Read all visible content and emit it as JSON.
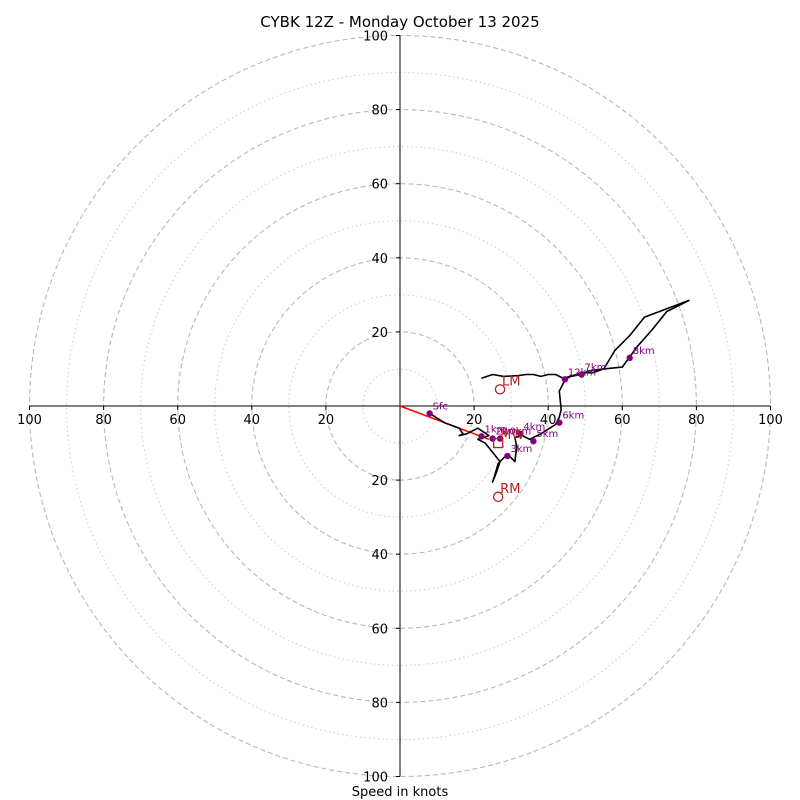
{
  "chart_data": {
    "type": "hodograph",
    "title": "CYBK 12Z - Monday October 13 2025",
    "xlabel": "Speed in knots",
    "xlim": [
      -100,
      100
    ],
    "ylim": [
      -100,
      100
    ],
    "x_ticks": [
      "100",
      "80",
      "60",
      "40",
      "20",
      "20",
      "40",
      "60",
      "80",
      "100"
    ],
    "x_tick_values": [
      -100,
      -80,
      -60,
      -40,
      -20,
      20,
      40,
      60,
      80,
      100
    ],
    "y_ticks": [
      "100",
      "80",
      "60",
      "40",
      "20",
      "20",
      "40",
      "60",
      "80",
      "100"
    ],
    "y_tick_values": [
      100,
      80,
      60,
      40,
      20,
      -20,
      -40,
      -60,
      -80,
      -100
    ],
    "rings": [
      20,
      40,
      60,
      80,
      100
    ],
    "minor_rings": [
      10,
      30,
      50,
      70,
      90
    ],
    "hodograph_line": [
      [
        8,
        -2
      ],
      [
        12,
        -4.5
      ],
      [
        16,
        -6
      ],
      [
        17,
        -7.5
      ],
      [
        16,
        -8
      ],
      [
        18,
        -7.5
      ],
      [
        21,
        -6
      ],
      [
        24,
        -8
      ],
      [
        21,
        -9
      ],
      [
        23,
        -10
      ],
      [
        25,
        -12.5
      ],
      [
        27,
        -15
      ],
      [
        26,
        -18
      ],
      [
        25,
        -20.5
      ],
      [
        25.5,
        -19
      ],
      [
        26.5,
        -15.5
      ],
      [
        29,
        -13
      ],
      [
        31,
        -15
      ],
      [
        31.5,
        -11
      ],
      [
        31,
        -8.5
      ],
      [
        33,
        -8
      ],
      [
        35,
        -9
      ],
      [
        38,
        -7.5
      ],
      [
        42,
        -5
      ],
      [
        43,
        -3
      ],
      [
        43.5,
        -1
      ],
      [
        43,
        4
      ],
      [
        44.5,
        7
      ],
      [
        46,
        8
      ],
      [
        49,
        8.5
      ],
      [
        51,
        9.5
      ],
      [
        55,
        10
      ],
      [
        60,
        10.5
      ],
      [
        64,
        16
      ],
      [
        68,
        20.5
      ],
      [
        72,
        25.5
      ],
      [
        78,
        28.5
      ],
      [
        66,
        24
      ],
      [
        62,
        19
      ],
      [
        58,
        15
      ],
      [
        55,
        10
      ],
      [
        52,
        9
      ],
      [
        49,
        9
      ],
      [
        46,
        8
      ],
      [
        44,
        7.5
      ],
      [
        42,
        8.5
      ],
      [
        40,
        8.5
      ],
      [
        38,
        8
      ],
      [
        36,
        8.5
      ],
      [
        34,
        8.5
      ],
      [
        32,
        8.2
      ],
      [
        28,
        8
      ],
      [
        25,
        8.5
      ],
      [
        22,
        7.5
      ]
    ],
    "heights": [
      {
        "label": "Sfc",
        "u": 8,
        "v": -2
      },
      {
        "label": "1km",
        "u": 22,
        "v": -8.2
      },
      {
        "label": "2km",
        "u": 25,
        "v": -8.8
      },
      {
        "label": "3km",
        "u": 29,
        "v": -13.5
      },
      {
        "label": "4km",
        "u": 32.5,
        "v": -7.5
      },
      {
        "label": "5km",
        "u": 36,
        "v": -9.5
      },
      {
        "label": "6km",
        "u": 43,
        "v": -4.5
      },
      {
        "label": "7km",
        "u": 49,
        "v": 8.5
      },
      {
        "label": "8km",
        "u": 62,
        "v": 13
      },
      {
        "label": "10km",
        "u": 27,
        "v": -8.8
      },
      {
        "label": "12km",
        "u": 44.5,
        "v": 7.2
      }
    ],
    "storm_motions": [
      {
        "label": "LM",
        "u": 27,
        "v": 4.5
      },
      {
        "label": "RM",
        "u": 26.5,
        "v": -24.5
      },
      {
        "label": "MW",
        "u": 26.5,
        "v": -10
      }
    ],
    "shear_vector": {
      "from": [
        0,
        0
      ],
      "to": [
        24,
        -9
      ]
    }
  }
}
